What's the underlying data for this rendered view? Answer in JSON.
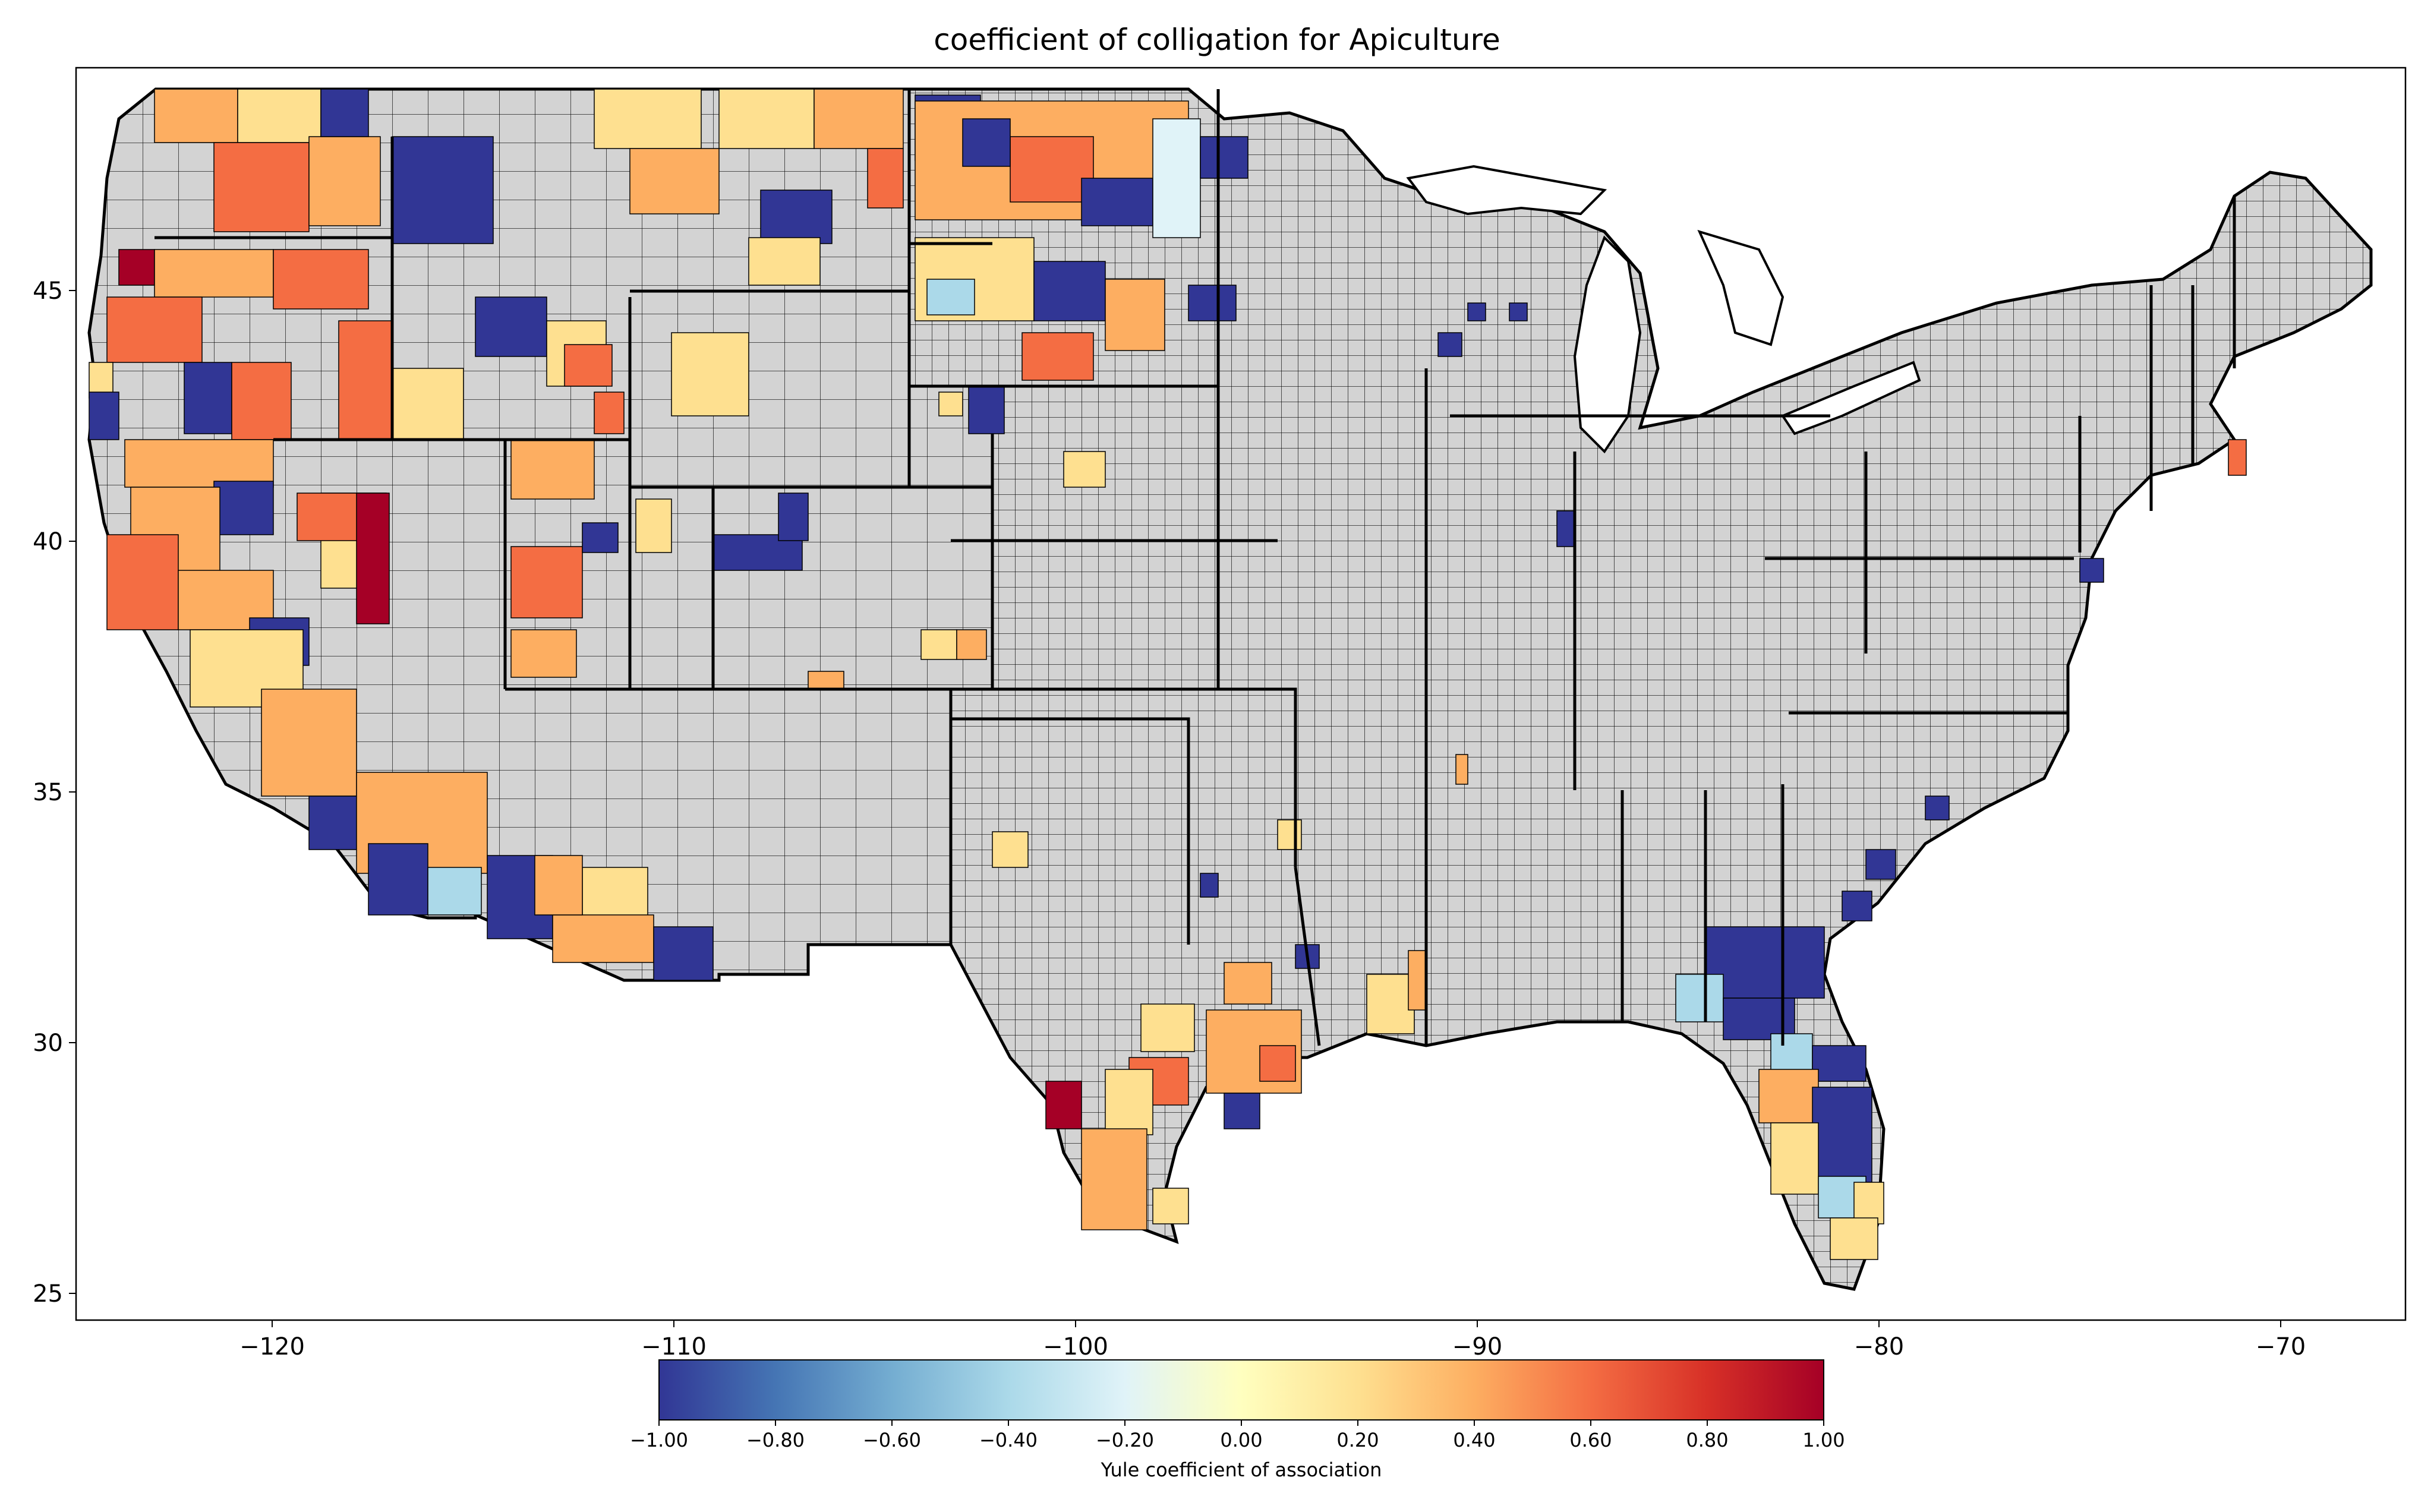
{
  "title": "coefficient of colligation for Apiculture",
  "x_ticks": [
    {
      "value": -120,
      "label": "−120"
    },
    {
      "value": -110,
      "label": "−110"
    },
    {
      "value": -100,
      "label": "−100"
    },
    {
      "value": -90,
      "label": "−90"
    },
    {
      "value": -80,
      "label": "−80"
    },
    {
      "value": -70,
      "label": "−70"
    }
  ],
  "y_ticks": [
    {
      "value": 45,
      "label": "45"
    },
    {
      "value": 40,
      "label": "40"
    },
    {
      "value": 35,
      "label": "35"
    },
    {
      "value": 30,
      "label": "30"
    },
    {
      "value": 25,
      "label": "25"
    }
  ],
  "colorbar": {
    "label": "Yule coefficient of association",
    "min": -1.0,
    "max": 1.0,
    "ticks": [
      "−1.00",
      "−0.80",
      "−0.60",
      "−0.40",
      "−0.20",
      "0.00",
      "0.20",
      "0.40",
      "0.60",
      "0.80",
      "1.00"
    ],
    "colormap": [
      "#313695",
      "#4575b4",
      "#74add1",
      "#abd9e9",
      "#e0f3f8",
      "#ffffbf",
      "#fee090",
      "#fdae61",
      "#f46d43",
      "#d73027",
      "#a50026"
    ]
  },
  "no_data_color": "#d3d3d3"
}
